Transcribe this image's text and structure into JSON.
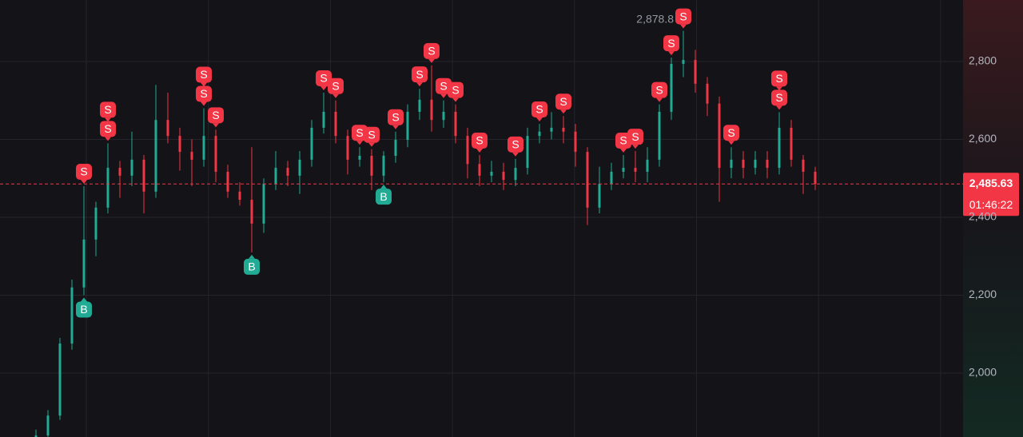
{
  "chart_data": {
    "type": "candlestick",
    "up_color": "#22ab94",
    "down_color": "#f23645",
    "ylim": [
      1836,
      2958
    ],
    "yticks": [
      {
        "value": 2000,
        "label": "2,000"
      },
      {
        "value": 2200,
        "label": "2,200"
      },
      {
        "value": 2400,
        "label": "2,400"
      },
      {
        "value": 2600,
        "label": "2,600"
      },
      {
        "value": 2800,
        "label": "2,800"
      }
    ],
    "grid": true,
    "open": [
      1830,
      1840,
      1891,
      2076,
      2220,
      2343,
      2425,
      2527,
      2507,
      2548,
      2466,
      2650,
      2609,
      2568,
      2548,
      2609,
      2517,
      2466,
      2445,
      2384,
      2486,
      2527,
      2507,
      2548,
      2630,
      2671,
      2609,
      2548,
      2558,
      2507,
      2558,
      2599,
      2671,
      2702,
      2650,
      2671,
      2609,
      2537,
      2507,
      2517,
      2496,
      2527,
      2609,
      2620,
      2630,
      2620,
      2568,
      2425,
      2486,
      2517,
      2527,
      2517,
      2548,
      2671,
      2794,
      2804,
      2743,
      2692,
      2527,
      2548,
      2527,
      2548,
      2527,
      2630,
      2548,
      2517
    ],
    "high": [
      1855,
      1905,
      2090,
      2240,
      2480,
      2440,
      2590,
      2545,
      2620,
      2560,
      2740,
      2720,
      2630,
      2600,
      2680,
      2625,
      2535,
      2490,
      2580,
      2500,
      2570,
      2545,
      2570,
      2650,
      2720,
      2700,
      2625,
      2580,
      2575,
      2570,
      2620,
      2690,
      2730,
      2790,
      2700,
      2690,
      2630,
      2560,
      2545,
      2540,
      2550,
      2630,
      2640,
      2670,
      2660,
      2640,
      2580,
      2530,
      2540,
      2560,
      2570,
      2580,
      2690,
      2810,
      2878.8,
      2830,
      2760,
      2710,
      2580,
      2570,
      2570,
      2570,
      2670,
      2650,
      2560,
      2530
    ],
    "low": [
      1820,
      1830,
      1880,
      2060,
      2200,
      2300,
      2410,
      2450,
      2480,
      2410,
      2450,
      2590,
      2520,
      2480,
      2530,
      2490,
      2450,
      2430,
      2310,
      2360,
      2470,
      2480,
      2460,
      2530,
      2615,
      2590,
      2510,
      2530,
      2470,
      2490,
      2540,
      2580,
      2650,
      2620,
      2630,
      2590,
      2500,
      2480,
      2490,
      2470,
      2480,
      2510,
      2590,
      2600,
      2590,
      2530,
      2380,
      2410,
      2470,
      2500,
      2490,
      2490,
      2530,
      2650,
      2760,
      2720,
      2660,
      2440,
      2500,
      2500,
      2510,
      2500,
      2510,
      2530,
      2460,
      2470
    ],
    "close": [
      1840,
      1891,
      2076,
      2220,
      2343,
      2425,
      2527,
      2507,
      2548,
      2466,
      2650,
      2609,
      2568,
      2548,
      2609,
      2517,
      2466,
      2445,
      2384,
      2486,
      2527,
      2507,
      2548,
      2630,
      2671,
      2609,
      2548,
      2558,
      2507,
      2558,
      2599,
      2671,
      2702,
      2650,
      2671,
      2609,
      2537,
      2507,
      2517,
      2496,
      2527,
      2609,
      2620,
      2630,
      2620,
      2568,
      2425,
      2486,
      2517,
      2527,
      2517,
      2548,
      2671,
      2794,
      2804,
      2743,
      2692,
      2527,
      2548,
      2527,
      2548,
      2527,
      2630,
      2548,
      2517,
      2486
    ],
    "markers": [
      {
        "index": 4,
        "label": "S"
      },
      {
        "index": 4,
        "label": "B"
      },
      {
        "index": 6,
        "label": "S"
      },
      {
        "index": 6,
        "label": "S"
      },
      {
        "index": 14,
        "label": "S"
      },
      {
        "index": 14,
        "label": "S"
      },
      {
        "index": 15,
        "label": "S"
      },
      {
        "index": 18,
        "label": "B"
      },
      {
        "index": 24,
        "label": "S"
      },
      {
        "index": 25,
        "label": "S"
      },
      {
        "index": 27,
        "label": "S"
      },
      {
        "index": 28,
        "label": "S"
      },
      {
        "index": 29,
        "label": "B"
      },
      {
        "index": 30,
        "label": "S"
      },
      {
        "index": 32,
        "label": "S"
      },
      {
        "index": 33,
        "label": "S"
      },
      {
        "index": 34,
        "label": "S"
      },
      {
        "index": 35,
        "label": "S"
      },
      {
        "index": 37,
        "label": "S"
      },
      {
        "index": 40,
        "label": "S"
      },
      {
        "index": 42,
        "label": "S"
      },
      {
        "index": 44,
        "label": "S"
      },
      {
        "index": 49,
        "label": "S"
      },
      {
        "index": 50,
        "label": "S"
      },
      {
        "index": 52,
        "label": "S"
      },
      {
        "index": 53,
        "label": "S"
      },
      {
        "index": 54,
        "label": "S"
      },
      {
        "index": 58,
        "label": "S"
      },
      {
        "index": 62,
        "label": "S"
      },
      {
        "index": 62,
        "label": "S"
      }
    ],
    "high_label": {
      "value": 2878.8,
      "label": "2,878.8"
    },
    "last_price": {
      "value": 2485.63,
      "label": "2,485.63"
    },
    "countdown": "01:46:22"
  }
}
